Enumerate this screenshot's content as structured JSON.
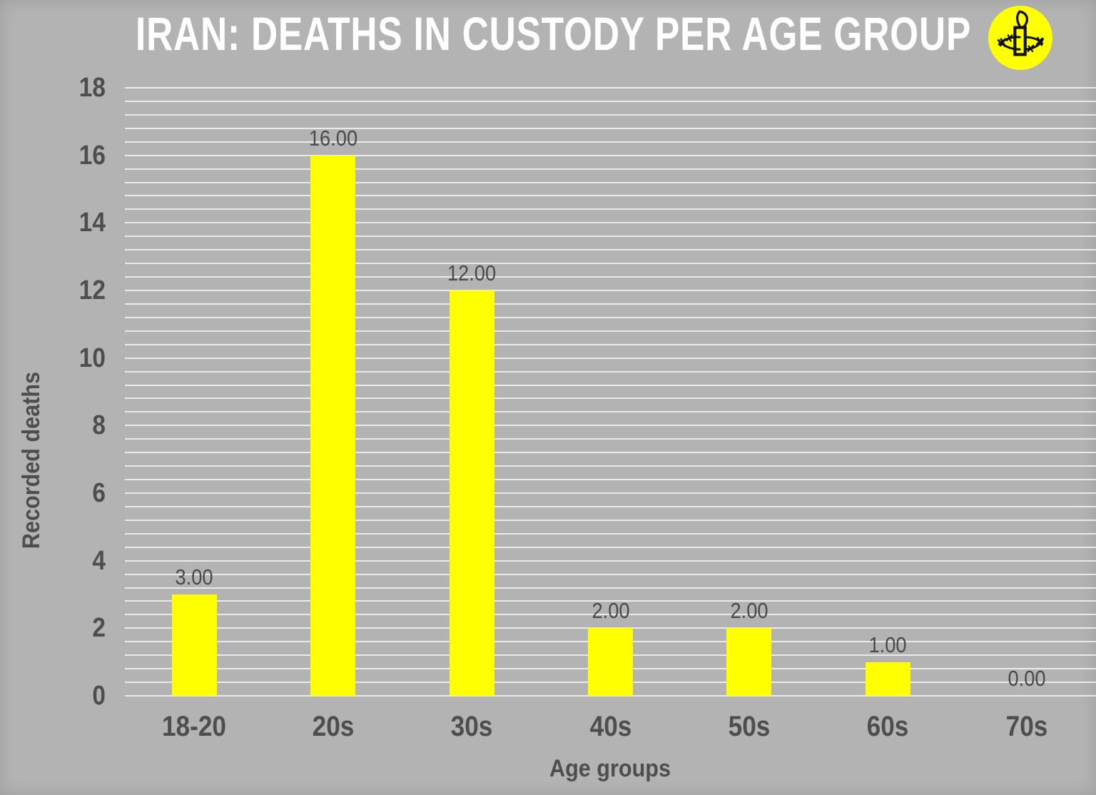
{
  "header": {
    "title": "IRAN: DEATHS IN CUSTODY PER AGE GROUP",
    "logo": "amnesty-international-candle-logo"
  },
  "chart_data": {
    "type": "bar",
    "title": "IRAN: DEATHS IN CUSTODY PER AGE GROUP",
    "categories": [
      "18-20",
      "20s",
      "30s",
      "40s",
      "50s",
      "60s",
      "70s"
    ],
    "values": [
      3,
      16,
      12,
      2,
      2,
      1,
      0
    ],
    "value_labels": [
      "3.00",
      "16.00",
      "12.00",
      "2.00",
      "2.00",
      "1.00",
      "0.00"
    ],
    "xlabel": "Age groups",
    "ylabel": "Recorded deaths",
    "ylim": [
      0,
      18
    ],
    "ytick_values": [
      0,
      2,
      4,
      6,
      8,
      10,
      12,
      14,
      16,
      18
    ],
    "minor_grid_step": 0.4,
    "grid": true,
    "legend": "none",
    "colors": {
      "bar": "#ffff00",
      "background": "#b3b3b3",
      "title_text": "#ffffff",
      "axis_text": "#4e4e4e",
      "value_text": "#4a4a4a",
      "gridline": "#ffffff",
      "logo_circle": "#ffff00",
      "logo_glyph": "#111111"
    }
  }
}
